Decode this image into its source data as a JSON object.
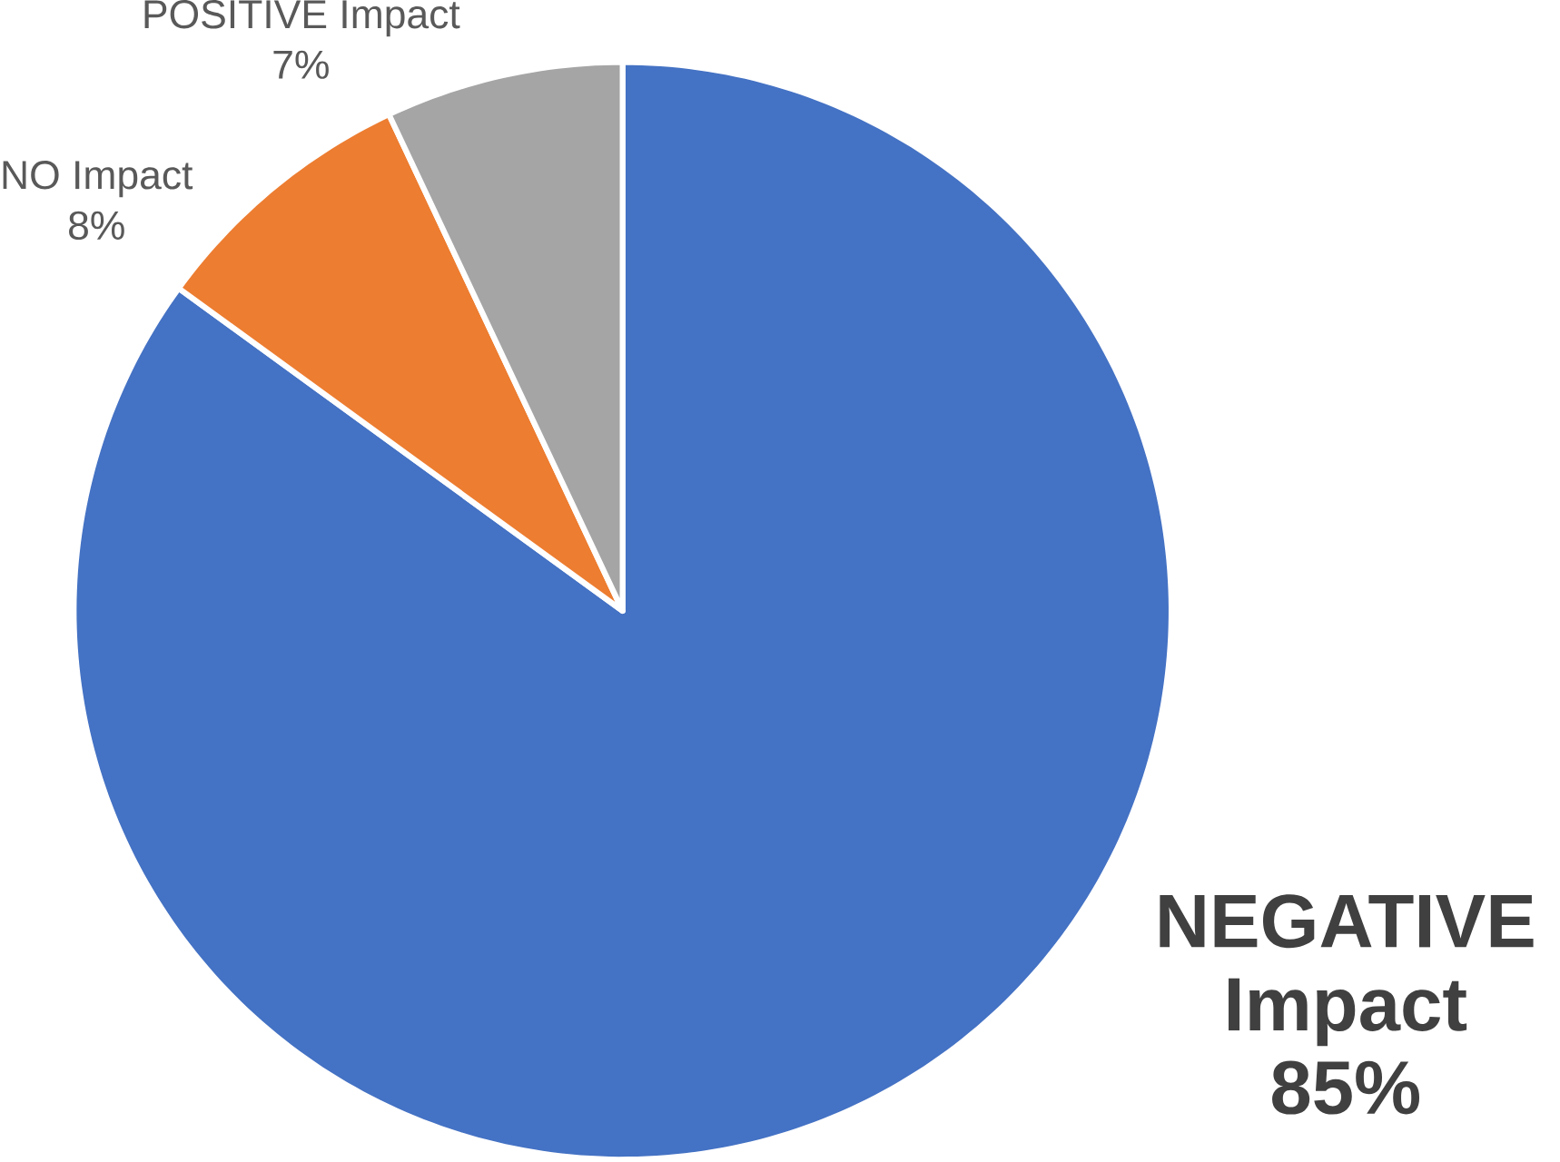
{
  "chart_data": {
    "type": "pie",
    "categories": [
      "NEGATIVE Impact",
      "NO Impact",
      "POSITIVE Impact"
    ],
    "values": [
      85,
      8,
      7
    ],
    "value_labels": [
      "85%",
      "8%",
      "7%"
    ],
    "colors": [
      "#4472c4",
      "#ed7d31",
      "#a5a5a5"
    ]
  }
}
